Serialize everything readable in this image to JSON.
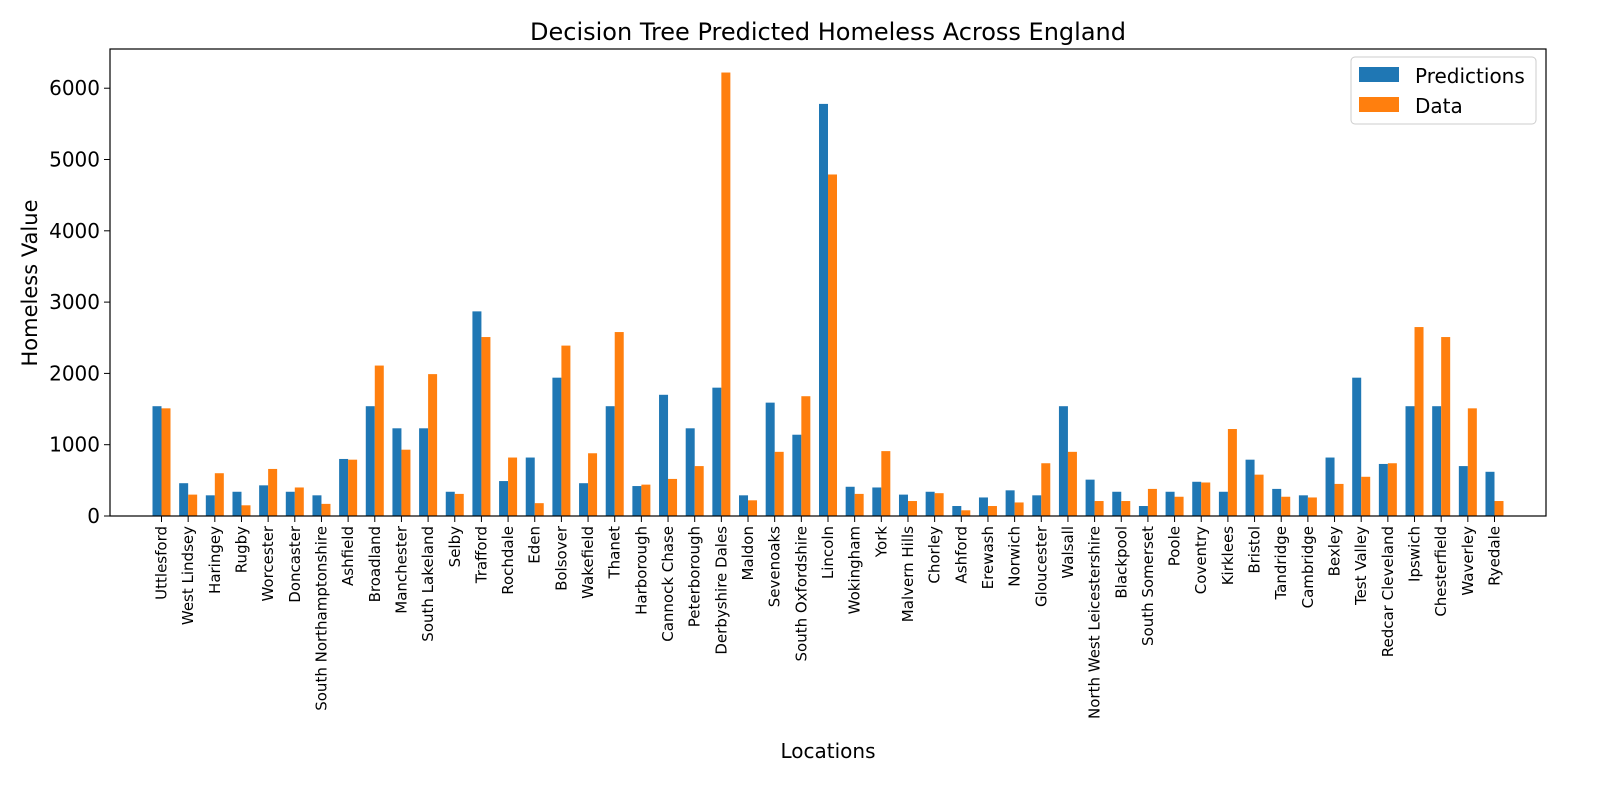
{
  "chart_data": {
    "type": "bar",
    "title": "Decision Tree Predicted Homeless Across England",
    "xlabel": "Locations",
    "ylabel": "Homeless Value",
    "ylim": [
      0,
      6550
    ],
    "yticks": [
      0,
      1000,
      2000,
      3000,
      4000,
      5000,
      6000
    ],
    "grid": false,
    "legend_position": "top-right",
    "colors": {
      "Predictions": "#1f77b4",
      "Data": "#ff7f0e"
    },
    "categories": [
      "Uttlesford",
      "West Lindsey",
      "Haringey",
      "Rugby",
      "Worcester",
      "Doncaster",
      "South Northamptonshire",
      "Ashfield",
      "Broadland",
      "Manchester",
      "South Lakeland",
      "Selby",
      "Trafford",
      "Rochdale",
      "Eden",
      "Bolsover",
      "Wakefield",
      "Thanet",
      "Harborough",
      "Cannock Chase",
      "Peterborough",
      "Derbyshire Dales",
      "Maldon",
      "Sevenoaks",
      "South Oxfordshire",
      "Lincoln",
      "Wokingham",
      "York",
      "Malvern Hills",
      "Chorley",
      "Ashford",
      "Erewash",
      "Norwich",
      "Gloucester",
      "Walsall",
      "North West Leicestershire",
      "Blackpool",
      "South Somerset",
      "Poole",
      "Coventry",
      "Kirklees",
      "Bristol",
      "Tandridge",
      "Cambridge",
      "Bexley",
      "Test Valley",
      "Redcar Cleveland",
      "Ipswich",
      "Chesterfield",
      "Waverley",
      "Ryedale"
    ],
    "series": [
      {
        "name": "Predictions",
        "values": [
          1540,
          460,
          290,
          340,
          430,
          340,
          290,
          800,
          1540,
          1230,
          1230,
          340,
          2870,
          490,
          820,
          1940,
          460,
          1540,
          420,
          1700,
          1230,
          1800,
          290,
          1590,
          1140,
          5780,
          410,
          400,
          300,
          340,
          140,
          260,
          360,
          290,
          1540,
          510,
          340,
          140,
          340,
          480,
          340,
          790,
          380,
          290,
          820,
          1940,
          730,
          1540,
          1540,
          700,
          620
        ]
      },
      {
        "name": "Data",
        "values": [
          1510,
          300,
          600,
          150,
          660,
          400,
          170,
          790,
          2110,
          930,
          1990,
          310,
          2510,
          820,
          180,
          2390,
          880,
          2580,
          440,
          520,
          700,
          6220,
          220,
          900,
          1680,
          4790,
          310,
          910,
          210,
          320,
          80,
          140,
          190,
          740,
          900,
          210,
          210,
          380,
          270,
          470,
          1220,
          580,
          270,
          260,
          450,
          550,
          740,
          2650,
          2510,
          1510,
          210
        ]
      }
    ]
  }
}
